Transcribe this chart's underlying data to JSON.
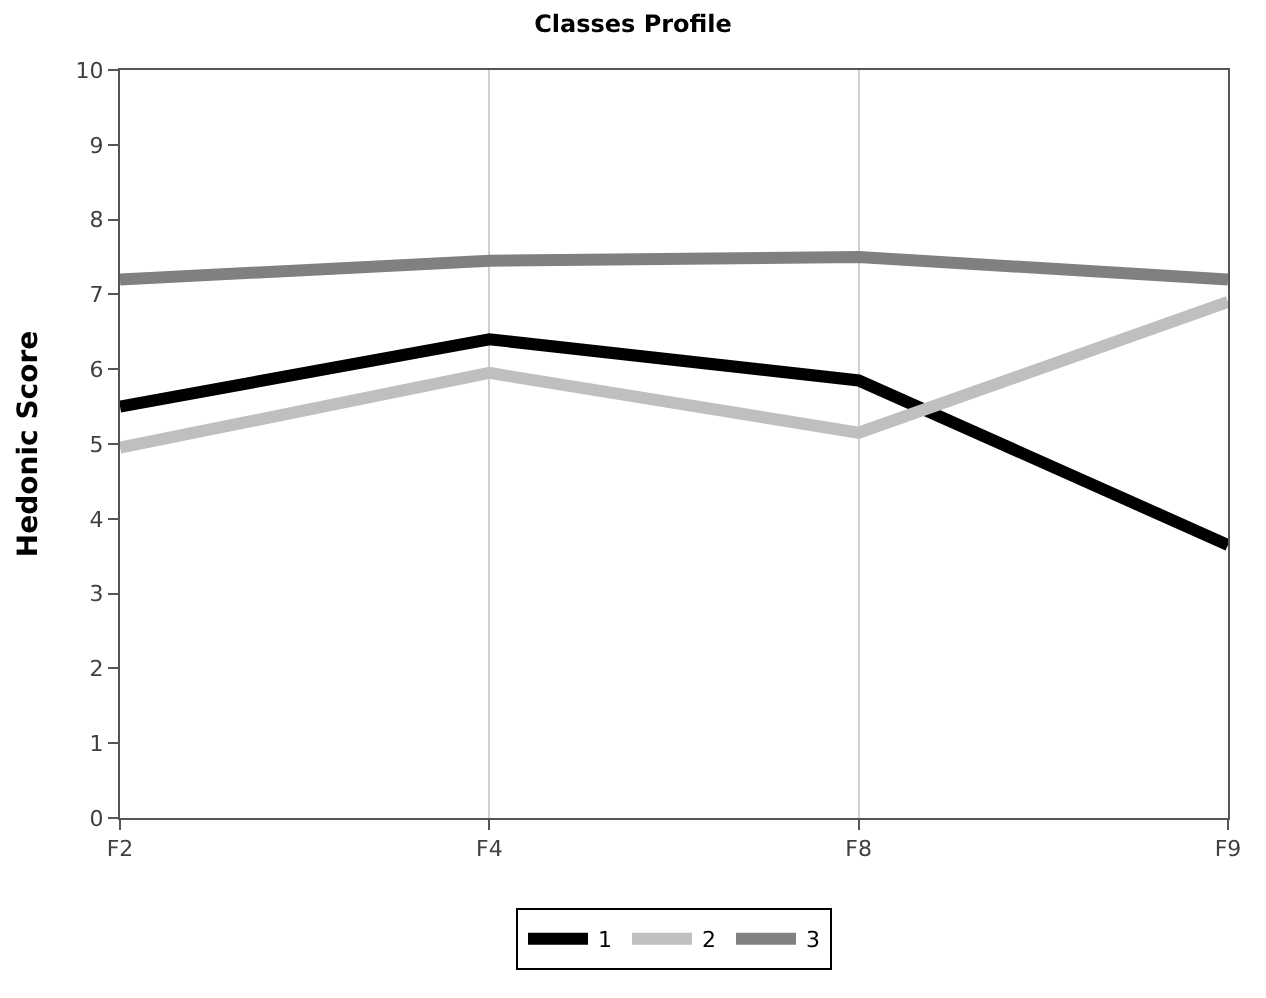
{
  "chart_data": {
    "type": "line",
    "title": "Classes Profile",
    "ylabel": "Hedonic Score",
    "categories": [
      "F2",
      "F4",
      "F8",
      "F9"
    ],
    "series": [
      {
        "name": "1",
        "color": "#000000",
        "values": [
          5.5,
          6.4,
          5.85,
          3.65
        ]
      },
      {
        "name": "2",
        "color": "#bfbfbf",
        "values": [
          4.95,
          5.95,
          5.15,
          6.9
        ]
      },
      {
        "name": "3",
        "color": "#808080",
        "values": [
          7.2,
          7.45,
          7.5,
          7.2
        ]
      }
    ],
    "ylim": [
      0,
      10
    ],
    "yticks": [
      0,
      1,
      2,
      3,
      4,
      5,
      6,
      7,
      8,
      9,
      10
    ],
    "grid": "x",
    "legend": "bottom",
    "marker": "none",
    "line_style": "solid"
  }
}
